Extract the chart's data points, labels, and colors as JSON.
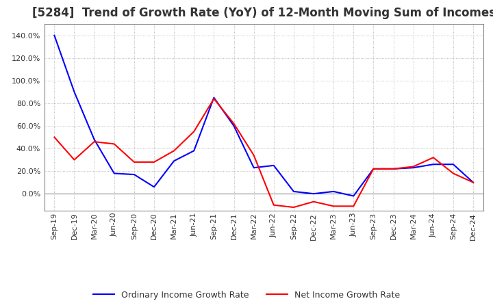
{
  "title": "[5284]  Trend of Growth Rate (YoY) of 12-Month Moving Sum of Incomes",
  "title_fontsize": 12,
  "ylim": [
    -15,
    150
  ],
  "yticks": [
    0,
    20,
    40,
    60,
    80,
    100,
    120,
    140
  ],
  "background_color": "#ffffff",
  "grid_color": "#aaaaaa",
  "ordinary_color": "#0000ff",
  "net_color": "#ff0000",
  "legend_ordinary": "Ordinary Income Growth Rate",
  "legend_net": "Net Income Growth Rate",
  "x_labels": [
    "Sep-19",
    "Dec-19",
    "Mar-20",
    "Jun-20",
    "Sep-20",
    "Dec-20",
    "Mar-21",
    "Jun-21",
    "Sep-21",
    "Dec-21",
    "Mar-22",
    "Jun-22",
    "Sep-22",
    "Dec-22",
    "Mar-23",
    "Jun-23",
    "Sep-23",
    "Dec-23",
    "Mar-24",
    "Jun-24",
    "Sep-24",
    "Dec-24"
  ],
  "ordinary_income_growth": [
    140,
    90,
    48,
    18,
    17,
    6,
    29,
    38,
    85,
    60,
    23,
    25,
    2,
    0,
    2,
    -2,
    22,
    22,
    23,
    26,
    26,
    10
  ],
  "net_income_growth": [
    50,
    30,
    46,
    44,
    28,
    28,
    38,
    55,
    84,
    62,
    34,
    -10,
    -12,
    -7,
    -11,
    -11,
    22,
    22,
    24,
    32,
    18,
    10
  ]
}
